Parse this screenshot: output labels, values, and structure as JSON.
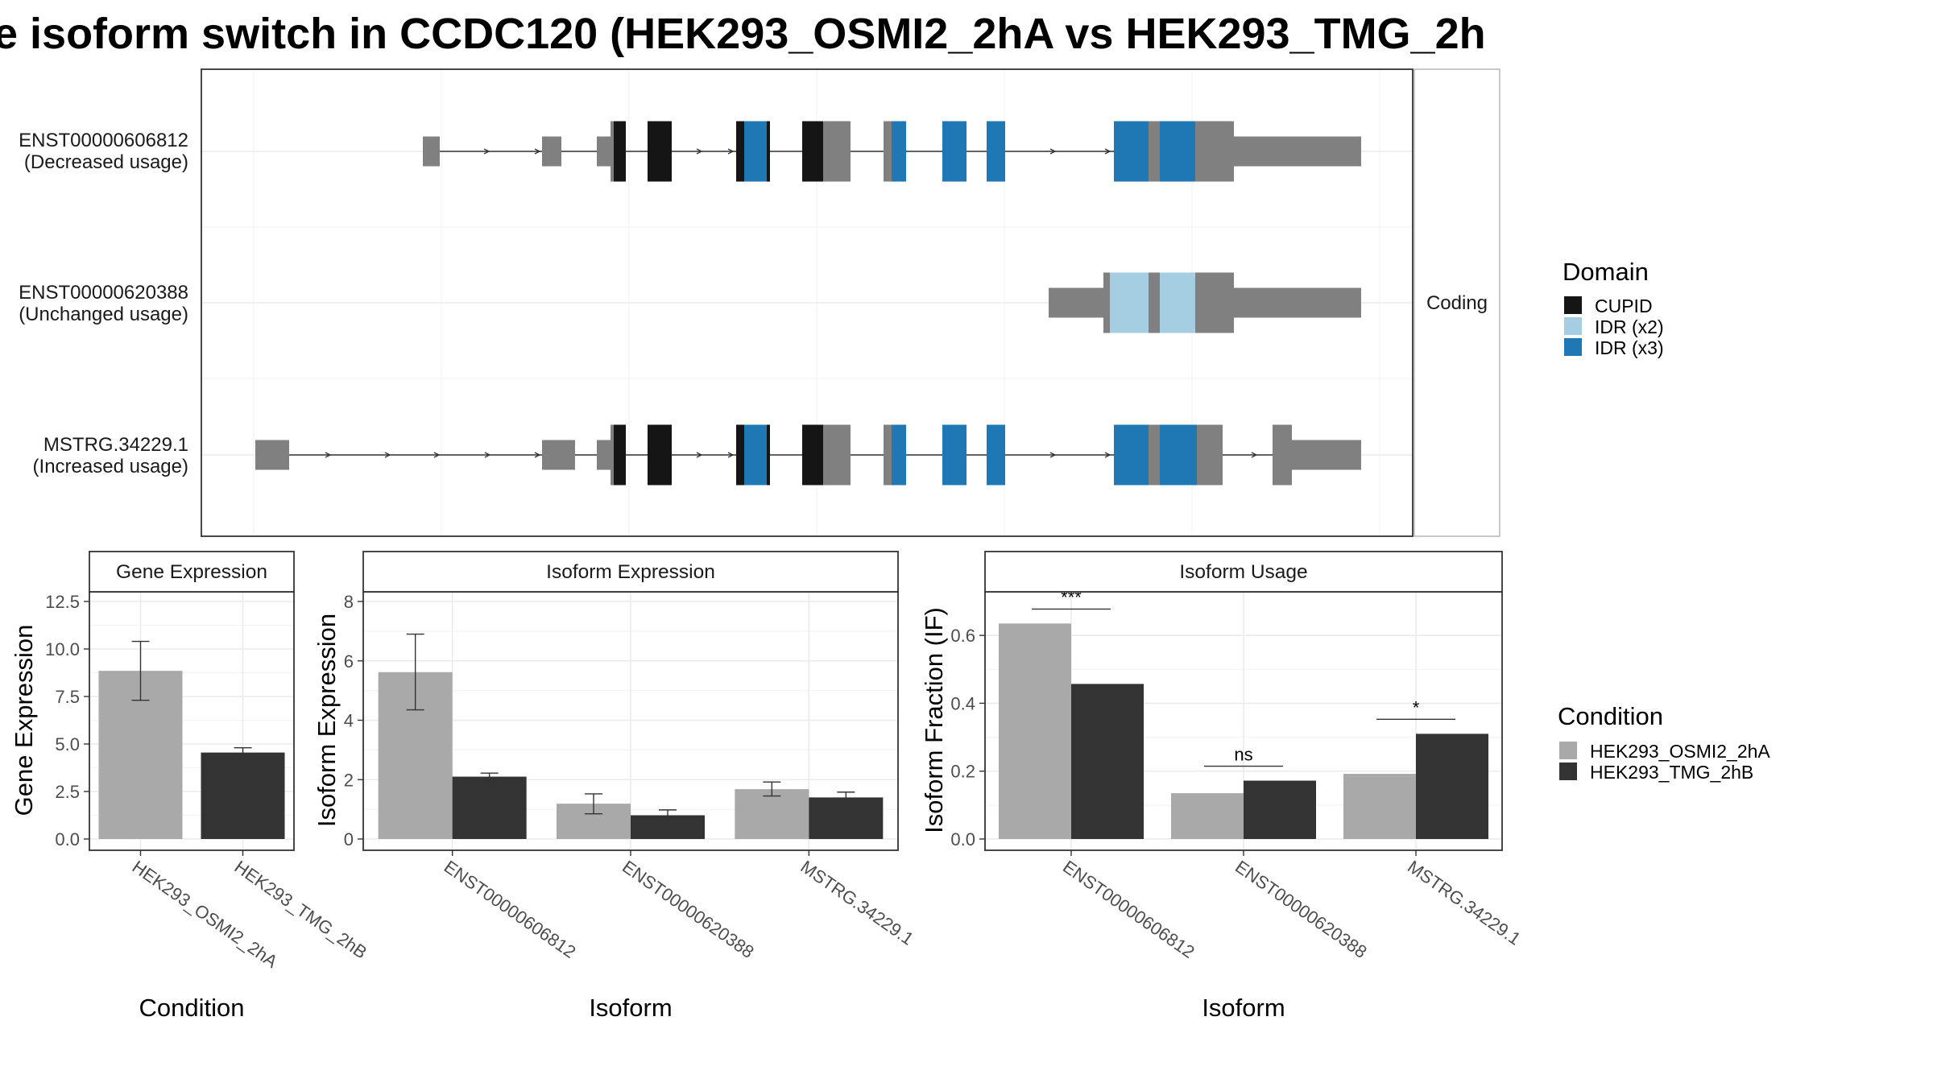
{
  "title": "e isoform switch in CCDC120 (HEK293_OSMI2_2hA vs HEK293_TMG_2h",
  "colors": {
    "CUPID": "#151515",
    "IDR (x2)": "#a6cee3",
    "IDR (x3)": "#1f78b4",
    "noncoding": "#808080",
    "HEK293_OSMI2_2hA": "#a9a9a9",
    "HEK293_TMG_2hB": "#333333"
  },
  "gene_model": {
    "strip_label": "Coding",
    "legend_title": "Domain",
    "legend_items": [
      "CUPID",
      "IDR (x2)",
      "IDR (x3)"
    ],
    "isoforms": [
      {
        "id": "ENST00000606812",
        "sub": "(Decreased usage)"
      },
      {
        "id": "ENST00000620388",
        "sub": "(Unchanged usage)"
      },
      {
        "id": "MSTRG.34229.1",
        "sub": "(Increased usage)"
      }
    ]
  },
  "chart_data": [
    {
      "type": "bar",
      "title": "Gene Expression",
      "xlabel": "Condition",
      "ylabel": "Gene Expression",
      "categories": [
        "HEK293_OSMI2_2hA",
        "HEK293_TMG_2hB"
      ],
      "values": [
        8.85,
        4.55
      ],
      "error_low": [
        7.3,
        4.3
      ],
      "error_high": [
        10.4,
        4.8
      ],
      "ylim": [
        0,
        12.5
      ],
      "yticks": [
        0.0,
        2.5,
        5.0,
        7.5,
        10.0,
        12.5
      ],
      "ytick_labels": [
        "0.0",
        "2.5",
        "5.0",
        "7.5",
        "10.0",
        "12.5"
      ]
    },
    {
      "type": "bar",
      "title": "Isoform Expression",
      "xlabel": "Isoform",
      "ylabel": "Isoform Expression",
      "categories": [
        "ENST00000606812",
        "ENST00000620388",
        "MSTRG.34229.1"
      ],
      "series": [
        {
          "name": "HEK293_OSMI2_2hA",
          "values": [
            5.62,
            1.19,
            1.68
          ],
          "error_low": [
            4.35,
            0.85,
            1.45
          ],
          "error_high": [
            6.9,
            1.52,
            1.92
          ]
        },
        {
          "name": "HEK293_TMG_2hB",
          "values": [
            2.1,
            0.8,
            1.4
          ],
          "error_low": [
            1.98,
            0.62,
            1.22
          ],
          "error_high": [
            2.22,
            0.98,
            1.58
          ]
        }
      ],
      "ylim": [
        0,
        8
      ],
      "yticks": [
        0,
        2,
        4,
        6,
        8
      ],
      "ytick_labels": [
        "0",
        "2",
        "4",
        "6",
        "8"
      ]
    },
    {
      "type": "bar",
      "title": "Isoform Usage",
      "xlabel": "Isoform",
      "ylabel": "Isoform Fraction (IF)",
      "categories": [
        "ENST00000606812",
        "ENST00000620388",
        "MSTRG.34229.1"
      ],
      "series": [
        {
          "name": "HEK293_OSMI2_2hA",
          "values": [
            0.635,
            0.135,
            0.192
          ]
        },
        {
          "name": "HEK293_TMG_2hB",
          "values": [
            0.457,
            0.172,
            0.31
          ]
        }
      ],
      "significance": [
        "***",
        "ns",
        "*"
      ],
      "ylim": [
        0,
        0.7
      ],
      "yticks": [
        0.0,
        0.2,
        0.4,
        0.6
      ],
      "ytick_labels": [
        "0.0",
        "0.2",
        "0.4",
        "0.6"
      ],
      "legend_title": "Condition"
    }
  ]
}
